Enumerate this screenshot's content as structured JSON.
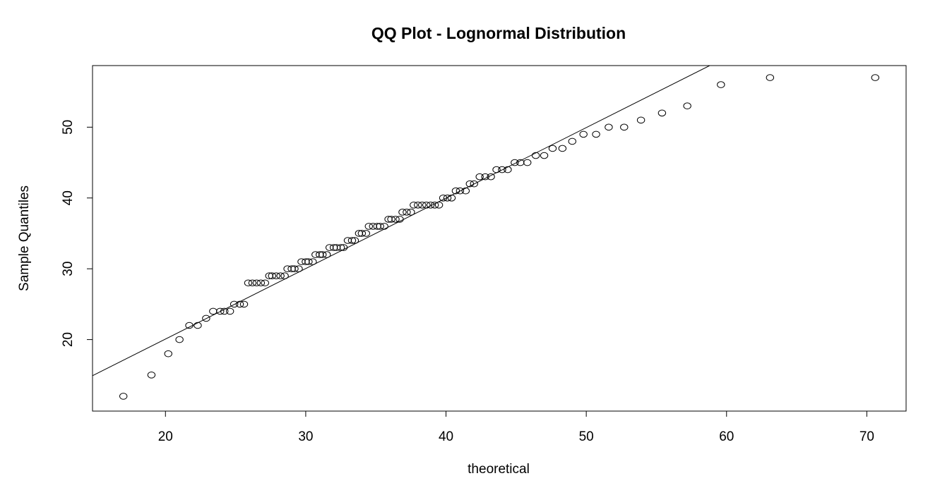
{
  "chart_data": {
    "type": "scatter",
    "title": "QQ Plot - Lognormal Distribution",
    "xlabel": "theoretical",
    "ylabel": "Sample Quantiles",
    "xlim": [
      14.8,
      72.8
    ],
    "ylim": [
      9.9,
      58.7
    ],
    "x_ticks": [
      20,
      30,
      40,
      50,
      60,
      70
    ],
    "y_ticks": [
      20,
      30,
      40,
      50
    ],
    "grid": false,
    "legend": "none",
    "reference_line": {
      "x": [
        14.8,
        58.8
      ],
      "y": [
        14.9,
        58.7
      ]
    },
    "points": [
      {
        "x": 17.0,
        "y": 12
      },
      {
        "x": 19.0,
        "y": 15
      },
      {
        "x": 20.2,
        "y": 18
      },
      {
        "x": 21.0,
        "y": 20
      },
      {
        "x": 21.7,
        "y": 22
      },
      {
        "x": 22.3,
        "y": 22
      },
      {
        "x": 22.9,
        "y": 23
      },
      {
        "x": 23.4,
        "y": 24
      },
      {
        "x": 23.9,
        "y": 24
      },
      {
        "x": 24.2,
        "y": 24
      },
      {
        "x": 24.6,
        "y": 24
      },
      {
        "x": 24.9,
        "y": 25
      },
      {
        "x": 25.3,
        "y": 25
      },
      {
        "x": 25.6,
        "y": 25
      },
      {
        "x": 25.9,
        "y": 28
      },
      {
        "x": 26.2,
        "y": 28
      },
      {
        "x": 26.5,
        "y": 28
      },
      {
        "x": 26.8,
        "y": 28
      },
      {
        "x": 27.1,
        "y": 28
      },
      {
        "x": 27.4,
        "y": 29
      },
      {
        "x": 27.6,
        "y": 29
      },
      {
        "x": 27.9,
        "y": 29
      },
      {
        "x": 28.2,
        "y": 29
      },
      {
        "x": 28.5,
        "y": 29
      },
      {
        "x": 28.7,
        "y": 30
      },
      {
        "x": 29.0,
        "y": 30
      },
      {
        "x": 29.2,
        "y": 30
      },
      {
        "x": 29.5,
        "y": 30
      },
      {
        "x": 29.7,
        "y": 31
      },
      {
        "x": 30.0,
        "y": 31
      },
      {
        "x": 30.2,
        "y": 31
      },
      {
        "x": 30.5,
        "y": 31
      },
      {
        "x": 30.7,
        "y": 32
      },
      {
        "x": 31.0,
        "y": 32
      },
      {
        "x": 31.2,
        "y": 32
      },
      {
        "x": 31.5,
        "y": 32
      },
      {
        "x": 31.7,
        "y": 33
      },
      {
        "x": 32.0,
        "y": 33
      },
      {
        "x": 32.2,
        "y": 33
      },
      {
        "x": 32.5,
        "y": 33
      },
      {
        "x": 32.7,
        "y": 33
      },
      {
        "x": 33.0,
        "y": 34
      },
      {
        "x": 33.3,
        "y": 34
      },
      {
        "x": 33.5,
        "y": 34
      },
      {
        "x": 33.8,
        "y": 35
      },
      {
        "x": 34.0,
        "y": 35
      },
      {
        "x": 34.3,
        "y": 35
      },
      {
        "x": 34.5,
        "y": 36
      },
      {
        "x": 34.8,
        "y": 36
      },
      {
        "x": 35.1,
        "y": 36
      },
      {
        "x": 35.3,
        "y": 36
      },
      {
        "x": 35.6,
        "y": 36
      },
      {
        "x": 35.9,
        "y": 37
      },
      {
        "x": 36.1,
        "y": 37
      },
      {
        "x": 36.4,
        "y": 37
      },
      {
        "x": 36.7,
        "y": 37
      },
      {
        "x": 36.9,
        "y": 38
      },
      {
        "x": 37.2,
        "y": 38
      },
      {
        "x": 37.5,
        "y": 38
      },
      {
        "x": 37.7,
        "y": 39
      },
      {
        "x": 38.0,
        "y": 39
      },
      {
        "x": 38.3,
        "y": 39
      },
      {
        "x": 38.6,
        "y": 39
      },
      {
        "x": 38.9,
        "y": 39
      },
      {
        "x": 39.2,
        "y": 39
      },
      {
        "x": 39.5,
        "y": 39
      },
      {
        "x": 39.8,
        "y": 40
      },
      {
        "x": 40.1,
        "y": 40
      },
      {
        "x": 40.4,
        "y": 40
      },
      {
        "x": 40.7,
        "y": 41
      },
      {
        "x": 41.0,
        "y": 41
      },
      {
        "x": 41.4,
        "y": 41
      },
      {
        "x": 41.7,
        "y": 42
      },
      {
        "x": 42.0,
        "y": 42
      },
      {
        "x": 42.4,
        "y": 43
      },
      {
        "x": 42.8,
        "y": 43
      },
      {
        "x": 43.2,
        "y": 43
      },
      {
        "x": 43.6,
        "y": 44
      },
      {
        "x": 44.0,
        "y": 44
      },
      {
        "x": 44.4,
        "y": 44
      },
      {
        "x": 44.9,
        "y": 45
      },
      {
        "x": 45.3,
        "y": 45
      },
      {
        "x": 45.8,
        "y": 45
      },
      {
        "x": 46.4,
        "y": 46
      },
      {
        "x": 47.0,
        "y": 46
      },
      {
        "x": 47.6,
        "y": 47
      },
      {
        "x": 48.3,
        "y": 47
      },
      {
        "x": 49.0,
        "y": 48
      },
      {
        "x": 49.8,
        "y": 49
      },
      {
        "x": 50.7,
        "y": 49
      },
      {
        "x": 51.6,
        "y": 50
      },
      {
        "x": 52.7,
        "y": 50
      },
      {
        "x": 53.9,
        "y": 51
      },
      {
        "x": 55.4,
        "y": 52
      },
      {
        "x": 57.2,
        "y": 53
      },
      {
        "x": 59.6,
        "y": 56
      },
      {
        "x": 63.1,
        "y": 57
      },
      {
        "x": 70.6,
        "y": 57
      }
    ]
  }
}
